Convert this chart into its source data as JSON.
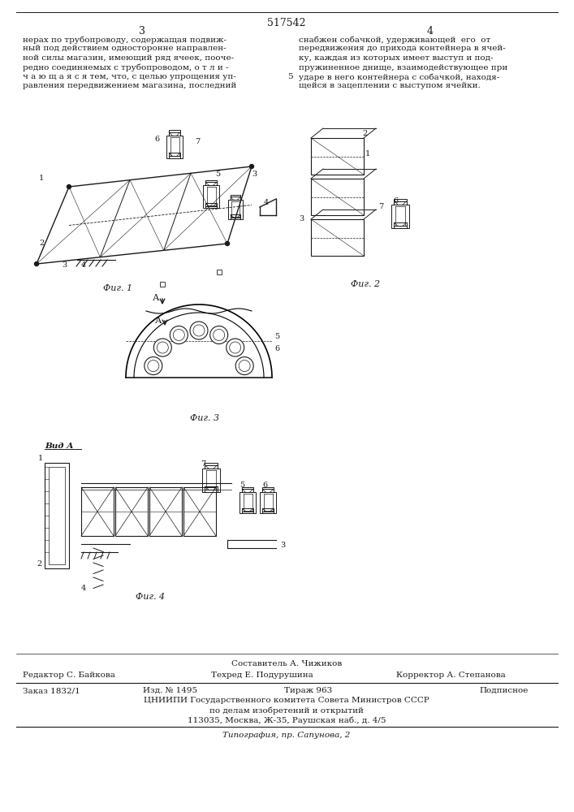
{
  "patent_number": "517542",
  "page_left": "3",
  "page_right": "4",
  "left_text": [
    "нерах по трубопроводу, содержащая подвиж-",
    "ный под действием односторонне направлен-",
    "ной силы магазин, имеющий ряд ячеек, поочe-",
    "редно соединяемых с трубопроводом, о т л и -",
    "ч а ю щ а я с я тем, что, с целью упрощения уп-",
    "равления передвижением магазина, последний"
  ],
  "right_text": [
    "снабжен собачкой, удерживающей  его  от",
    "передвижения до прихода контейнера в ячей-",
    "ку, каждая из которых имеет выступ и под-",
    "пружиненное днище, взаимодействующее при",
    "ударе в него контейнера с собачкой, находя-",
    "щейся в зацеплении с выступом ячейки."
  ],
  "line5_number": "5",
  "fig1_label": "Фиг. 1",
  "fig2_label": "Фиг. 2",
  "fig3_label": "Фиг. 3",
  "fig4_label": "Фиг. 4",
  "vid_a": "Вид А",
  "arrow_a": "А",
  "footer_sostavitel": "Составитель А. Чижиков",
  "footer_editor": "Редактор С. Байкова",
  "footer_techred": "Техред Е. Подурушина",
  "footer_corrector": "Корректор А. Степанова",
  "footer_zakaz": "Заказ 1832/1",
  "footer_izd": "Изд. № 1495",
  "footer_tirazh": "Тираж 963",
  "footer_podpisnoe": "Подписное",
  "footer_tsniip": "ЦНИИПИ Государственного комитета Совета Министров СССР",
  "footer_po_delam": "по делам изобретений и открытий",
  "footer_address": "113035, Москва, Ж-35, Раушская наб., д. 4/5",
  "footer_tipografiya": "Типография, пр. Сапунова, 2",
  "bg_color": "#ffffff",
  "text_color": "#1a1a1a"
}
